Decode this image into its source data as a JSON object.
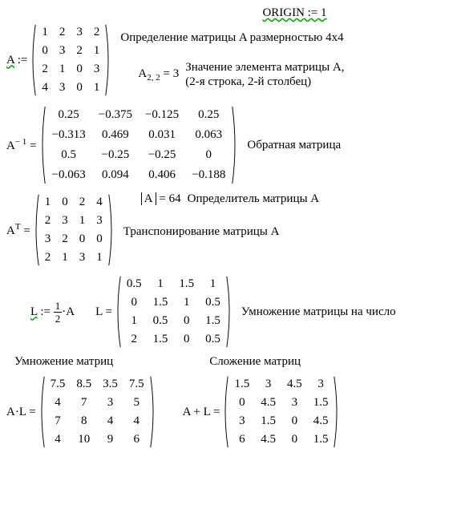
{
  "origin_line": "ORIGIN := 1",
  "A_label": "A",
  "assign": ":=",
  "eq": "=",
  "A": [
    [
      "1",
      "2",
      "3",
      "2"
    ],
    [
      "0",
      "3",
      "2",
      "1"
    ],
    [
      "2",
      "1",
      "0",
      "3"
    ],
    [
      "4",
      "3",
      "0",
      "1"
    ]
  ],
  "A_comment": "Определение матрицы A размерностью 4x4",
  "A22_lhs": "A",
  "A22_sub": "2, 2",
  "A22_val": "3",
  "A22_comment1": "Значение элемента матрицы A,",
  "A22_comment2": "(2-я строка, 2-й столбец)",
  "Ainv_label": "A",
  "Ainv_sup": "− 1",
  "Ainv": [
    [
      "0.25",
      "−0.375",
      "−0.125",
      "0.25"
    ],
    [
      "−0.313",
      "0.469",
      "0.031",
      "0.063"
    ],
    [
      "0.5",
      "−0.25",
      "−0.25",
      "0"
    ],
    [
      "−0.063",
      "0.094",
      "0.406",
      "−0.188"
    ]
  ],
  "Ainv_comment": "Обратная матрица",
  "det_lhs": "A",
  "det_val": "64",
  "det_comment": "Определитель матрицы A",
  "AT_label": "A",
  "AT_sup": "T",
  "AT": [
    [
      "1",
      "0",
      "2",
      "4"
    ],
    [
      "2",
      "3",
      "1",
      "3"
    ],
    [
      "3",
      "2",
      "0",
      "0"
    ],
    [
      "2",
      "1",
      "3",
      "1"
    ]
  ],
  "AT_comment": "Транспонирование матрицы A",
  "L_label": "L",
  "L_def_rhs_coeff_num": "1",
  "L_def_rhs_coeff_den": "2",
  "L_def_rhs_dot": "·",
  "L_def_rhs_A": "A",
  "L": [
    [
      "0.5",
      "1",
      "1.5",
      "1"
    ],
    [
      "0",
      "1.5",
      "1",
      "0.5"
    ],
    [
      "1",
      "0.5",
      "0",
      "1.5"
    ],
    [
      "2",
      "1.5",
      "0",
      "0.5"
    ]
  ],
  "L_comment": "Умножение матрицы на число",
  "mul_title": "Умножение матриц",
  "add_title": "Сложение матриц",
  "AL_label": "A·L",
  "AL": [
    [
      "7.5",
      "8.5",
      "3.5",
      "7.5"
    ],
    [
      "4",
      "7",
      "3",
      "5"
    ],
    [
      "7",
      "8",
      "4",
      "4"
    ],
    [
      "4",
      "10",
      "9",
      "6"
    ]
  ],
  "AplusL_label": "A + L",
  "AplusL": [
    [
      "1.5",
      "3",
      "4.5",
      "3"
    ],
    [
      "0",
      "4.5",
      "3",
      "1.5"
    ],
    [
      "3",
      "1.5",
      "0",
      "4.5"
    ],
    [
      "6",
      "4.5",
      "0",
      "1.5"
    ]
  ]
}
